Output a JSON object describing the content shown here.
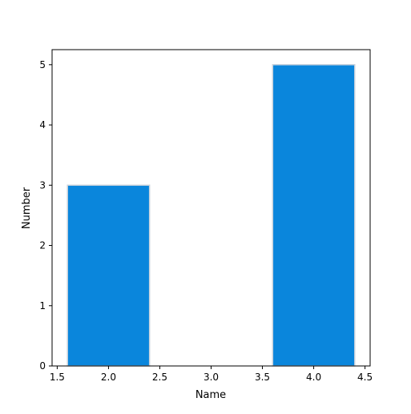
{
  "chart_data": {
    "type": "bar",
    "title": "",
    "xlabel": "Name",
    "ylabel": "Number",
    "xlim": [
      1.45,
      4.55
    ],
    "ylim": [
      0,
      5.25
    ],
    "x_ticks": [
      1.5,
      2.0,
      2.5,
      3.0,
      3.5,
      4.0,
      4.5
    ],
    "x_tick_labels": [
      "1.5",
      "2.0",
      "2.5",
      "3.0",
      "3.5",
      "4.0",
      "4.5"
    ],
    "y_ticks": [
      0,
      1,
      2,
      3,
      4,
      5
    ],
    "y_tick_labels": [
      "0",
      "1",
      "2",
      "3",
      "4",
      "5"
    ],
    "bars": [
      {
        "x": 2.0,
        "width": 0.8,
        "value": 3
      },
      {
        "x": 4.0,
        "width": 0.8,
        "value": 5
      }
    ],
    "bar_color": "#0a86dc",
    "bar_edge_color": "#c8d2dc",
    "grid": false,
    "legend": "none"
  }
}
